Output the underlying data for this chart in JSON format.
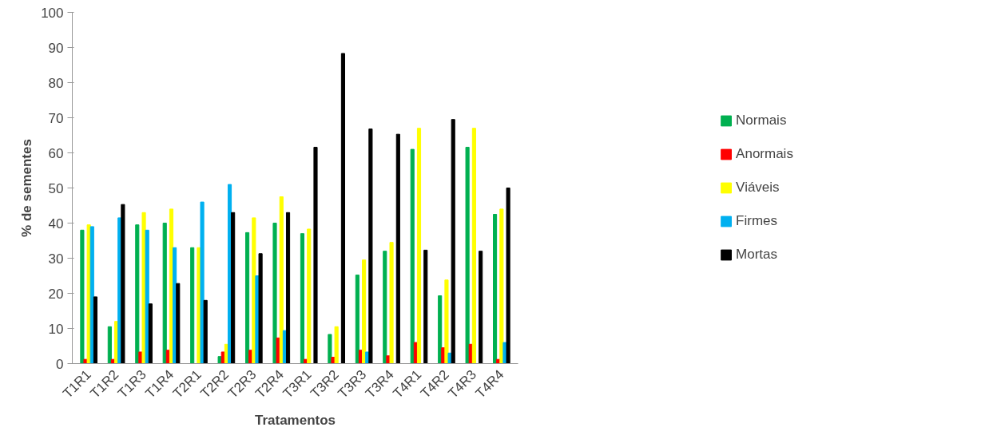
{
  "chart_data": {
    "type": "bar",
    "xlabel": "Tratamentos",
    "ylabel": "% de sementes",
    "categories": [
      "T1R1",
      "T1R2",
      "T1R3",
      "T1R4",
      "T2R1",
      "T2R2",
      "T2R3",
      "T2R4",
      "T3R1",
      "T3R2",
      "T3R3",
      "T3R4",
      "T4R1",
      "T4R2",
      "T4R3",
      "T4R4"
    ],
    "series": [
      {
        "name": "Normais",
        "color": "#00b050",
        "values": [
          38,
          10.5,
          39.5,
          40,
          33,
          2,
          37.3,
          40,
          37,
          8.3,
          25.2,
          32,
          61,
          19.3,
          61.6,
          42.5
        ]
      },
      {
        "name": "Anormais",
        "color": "#ff0000",
        "values": [
          1.2,
          1.2,
          3.3,
          3.8,
          0,
          3.3,
          3.8,
          7.3,
          1.2,
          1.8,
          3.8,
          2.2,
          6,
          4.5,
          5.5,
          1.2
        ]
      },
      {
        "name": "Viáveis",
        "color": "#ffff00",
        "values": [
          39.5,
          12,
          43,
          44,
          33,
          5.5,
          41.5,
          47.5,
          38.3,
          10.5,
          29.5,
          34.5,
          67,
          23.8,
          67,
          44
        ]
      },
      {
        "name": "Firmes",
        "color": "#00b0f0",
        "values": [
          39,
          41.5,
          38,
          33,
          46,
          51,
          25,
          9.4,
          0,
          0,
          3.3,
          0,
          0,
          3,
          0,
          6
        ]
      },
      {
        "name": "Mortas",
        "color": "#000000",
        "values": [
          19,
          45.3,
          17,
          22.8,
          18,
          43,
          31.3,
          43,
          61.6,
          88.3,
          66.8,
          65.3,
          32.3,
          69.5,
          32,
          50
        ]
      }
    ],
    "ylim": [
      0,
      100
    ],
    "yticks": [
      0,
      10,
      20,
      30,
      40,
      50,
      60,
      70,
      80,
      90,
      100
    ],
    "grid": false,
    "legend": "right"
  }
}
